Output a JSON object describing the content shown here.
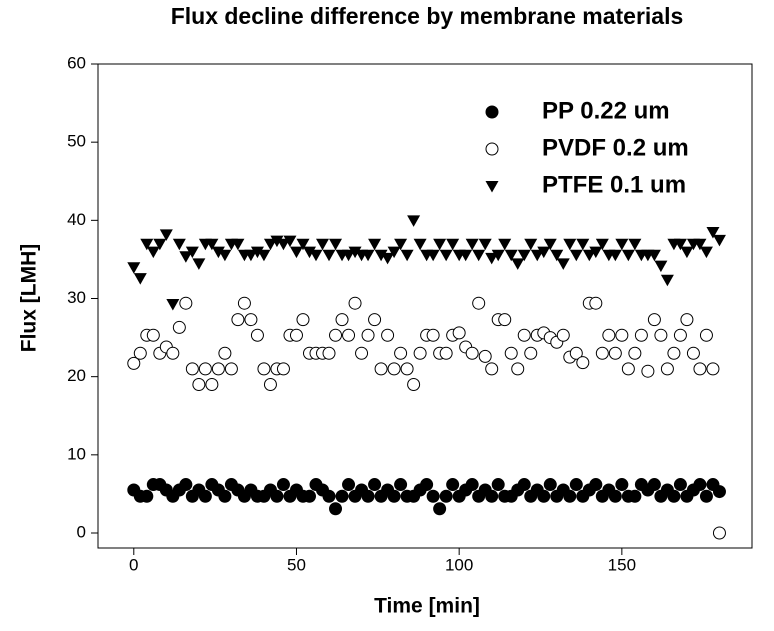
{
  "chart_data": {
    "type": "scatter",
    "title": "Flux decline difference by membrane materials",
    "x_label": "Time [min]",
    "y_label": "Flux [LMH]",
    "xlim": [
      -11,
      190
    ],
    "ylim": [
      0,
      60
    ],
    "xticks": [
      0,
      50,
      100,
      150
    ],
    "yticks": [
      0,
      10,
      20,
      30,
      40,
      50,
      60
    ],
    "legend": "upper right",
    "x": [
      0,
      2,
      4,
      6,
      8,
      10,
      12,
      14,
      16,
      18,
      20,
      22,
      24,
      26,
      28,
      30,
      32,
      34,
      36,
      38,
      40,
      42,
      44,
      46,
      48,
      50,
      52,
      54,
      56,
      58,
      60,
      62,
      64,
      66,
      68,
      70,
      72,
      74,
      76,
      78,
      80,
      82,
      84,
      86,
      88,
      90,
      92,
      94,
      96,
      98,
      100,
      102,
      104,
      106,
      108,
      110,
      112,
      114,
      116,
      118,
      120,
      122,
      124,
      126,
      128,
      130,
      132,
      134,
      136,
      138,
      140,
      142,
      144,
      146,
      148,
      150,
      152,
      154,
      156,
      158,
      160,
      162,
      164,
      166,
      168,
      170,
      172,
      174,
      176,
      178,
      180
    ],
    "series": [
      {
        "name": "PP 0.22 um",
        "color": "#000000",
        "marker": "filled-circle",
        "values": [
          5.5,
          4.7,
          4.7,
          6.2,
          6.2,
          5.5,
          4.7,
          5.5,
          6.2,
          4.7,
          5.5,
          4.7,
          6.2,
          5.5,
          4.7,
          6.2,
          5.5,
          4.7,
          5.5,
          4.7,
          4.7,
          5.5,
          4.7,
          6.2,
          4.7,
          5.5,
          4.7,
          4.7,
          6.2,
          5.5,
          4.7,
          3.1,
          4.7,
          6.2,
          4.7,
          5.5,
          4.7,
          6.2,
          4.7,
          5.5,
          4.7,
          6.2,
          4.7,
          4.7,
          5.5,
          6.2,
          4.7,
          3.1,
          4.7,
          6.2,
          4.7,
          5.5,
          6.2,
          4.7,
          5.5,
          4.7,
          6.2,
          4.7,
          4.7,
          5.5,
          6.2,
          4.7,
          5.5,
          4.7,
          6.2,
          4.7,
          5.5,
          4.7,
          6.2,
          4.7,
          5.5,
          6.2,
          4.7,
          5.5,
          4.7,
          6.2,
          4.7,
          4.7,
          6.2,
          5.5,
          6.2,
          4.7,
          5.5,
          4.7,
          6.2,
          4.7,
          5.5,
          6.2,
          4.7,
          6.2,
          5.3
        ]
      },
      {
        "name": "PVDF 0.2 um",
        "color": "#000000",
        "marker": "open-circle",
        "values": [
          21.7,
          23,
          25.3,
          25.3,
          23,
          23.8,
          23,
          26.3,
          29.4,
          21,
          19,
          21,
          19,
          21,
          23,
          21,
          27.3,
          29.4,
          27.3,
          25.3,
          21,
          19,
          21,
          21,
          25.3,
          25.3,
          27.3,
          23,
          23,
          23,
          23,
          25.3,
          27.3,
          25.3,
          29.4,
          23,
          25.3,
          27.3,
          21,
          25.3,
          21,
          23,
          21,
          19,
          23,
          25.3,
          25.3,
          23,
          23,
          25.3,
          25.6,
          23.8,
          23,
          29.4,
          22.6,
          21,
          27.3,
          27.3,
          23,
          21,
          25.3,
          23,
          25.3,
          25.6,
          25,
          24.4,
          25.3,
          22.5,
          23,
          21.8,
          29.4,
          29.4,
          23,
          25.3,
          23,
          25.3,
          21,
          23,
          25.3,
          20.7,
          27.3,
          25.3,
          21,
          23,
          25.3,
          27.3,
          23,
          21,
          25.3,
          21,
          0
        ]
      },
      {
        "name": "PTFE 0.1 um",
        "color": "#000000",
        "marker": "filled-triangle-down",
        "values": [
          34,
          32.6,
          37,
          36,
          37,
          38.2,
          29.3,
          37,
          35.4,
          36,
          34.5,
          37,
          37,
          36,
          35.6,
          37,
          37,
          35.6,
          35.6,
          36,
          35.6,
          37,
          37.4,
          37,
          37.4,
          36,
          37,
          36,
          35.6,
          37,
          35.6,
          37,
          35.6,
          35.6,
          36,
          35.6,
          35.6,
          37,
          35.6,
          35.2,
          36,
          37,
          35.6,
          40,
          37,
          35.6,
          35.6,
          37,
          35.6,
          37,
          35.6,
          35.6,
          37,
          35.6,
          37,
          35.2,
          35.6,
          37,
          35.6,
          34.5,
          35.6,
          37,
          35.6,
          36,
          37,
          35.6,
          34.5,
          37,
          35.6,
          37,
          35.6,
          36,
          37,
          35.6,
          35.6,
          37,
          35.6,
          37,
          35.6,
          35.6,
          35.6,
          34.2,
          32.4,
          37,
          37,
          36,
          37,
          37,
          36,
          38.5,
          37.5
        ]
      }
    ]
  }
}
